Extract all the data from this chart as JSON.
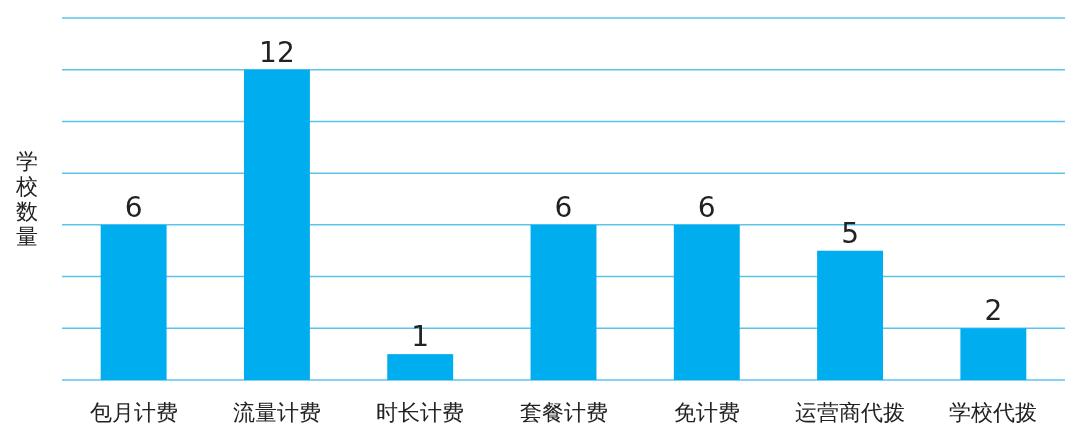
{
  "chart_data": {
    "type": "bar",
    "ylabel": "学校数量",
    "categories": [
      "包月计费",
      "流量计费",
      "时长计费",
      "套餐计费",
      "免计费",
      "运营商代拨",
      "学校代拨"
    ],
    "values": [
      6,
      12,
      1,
      6,
      6,
      5,
      2
    ],
    "color": "#00aeef",
    "ylim": [
      0,
      14
    ],
    "yticks": [
      {
        "value": 0,
        "label": null
      },
      {
        "value": 2,
        "label": null
      },
      {
        "value": 4,
        "label": null
      },
      {
        "value": 6,
        "label": null
      },
      {
        "value": 8,
        "label": null
      },
      {
        "value": 10,
        "label": null
      },
      {
        "value": 12,
        "label": null
      },
      {
        "value": 14,
        "label": null
      }
    ],
    "grid": "y",
    "data_labels": true,
    "tick_labels": "x"
  }
}
